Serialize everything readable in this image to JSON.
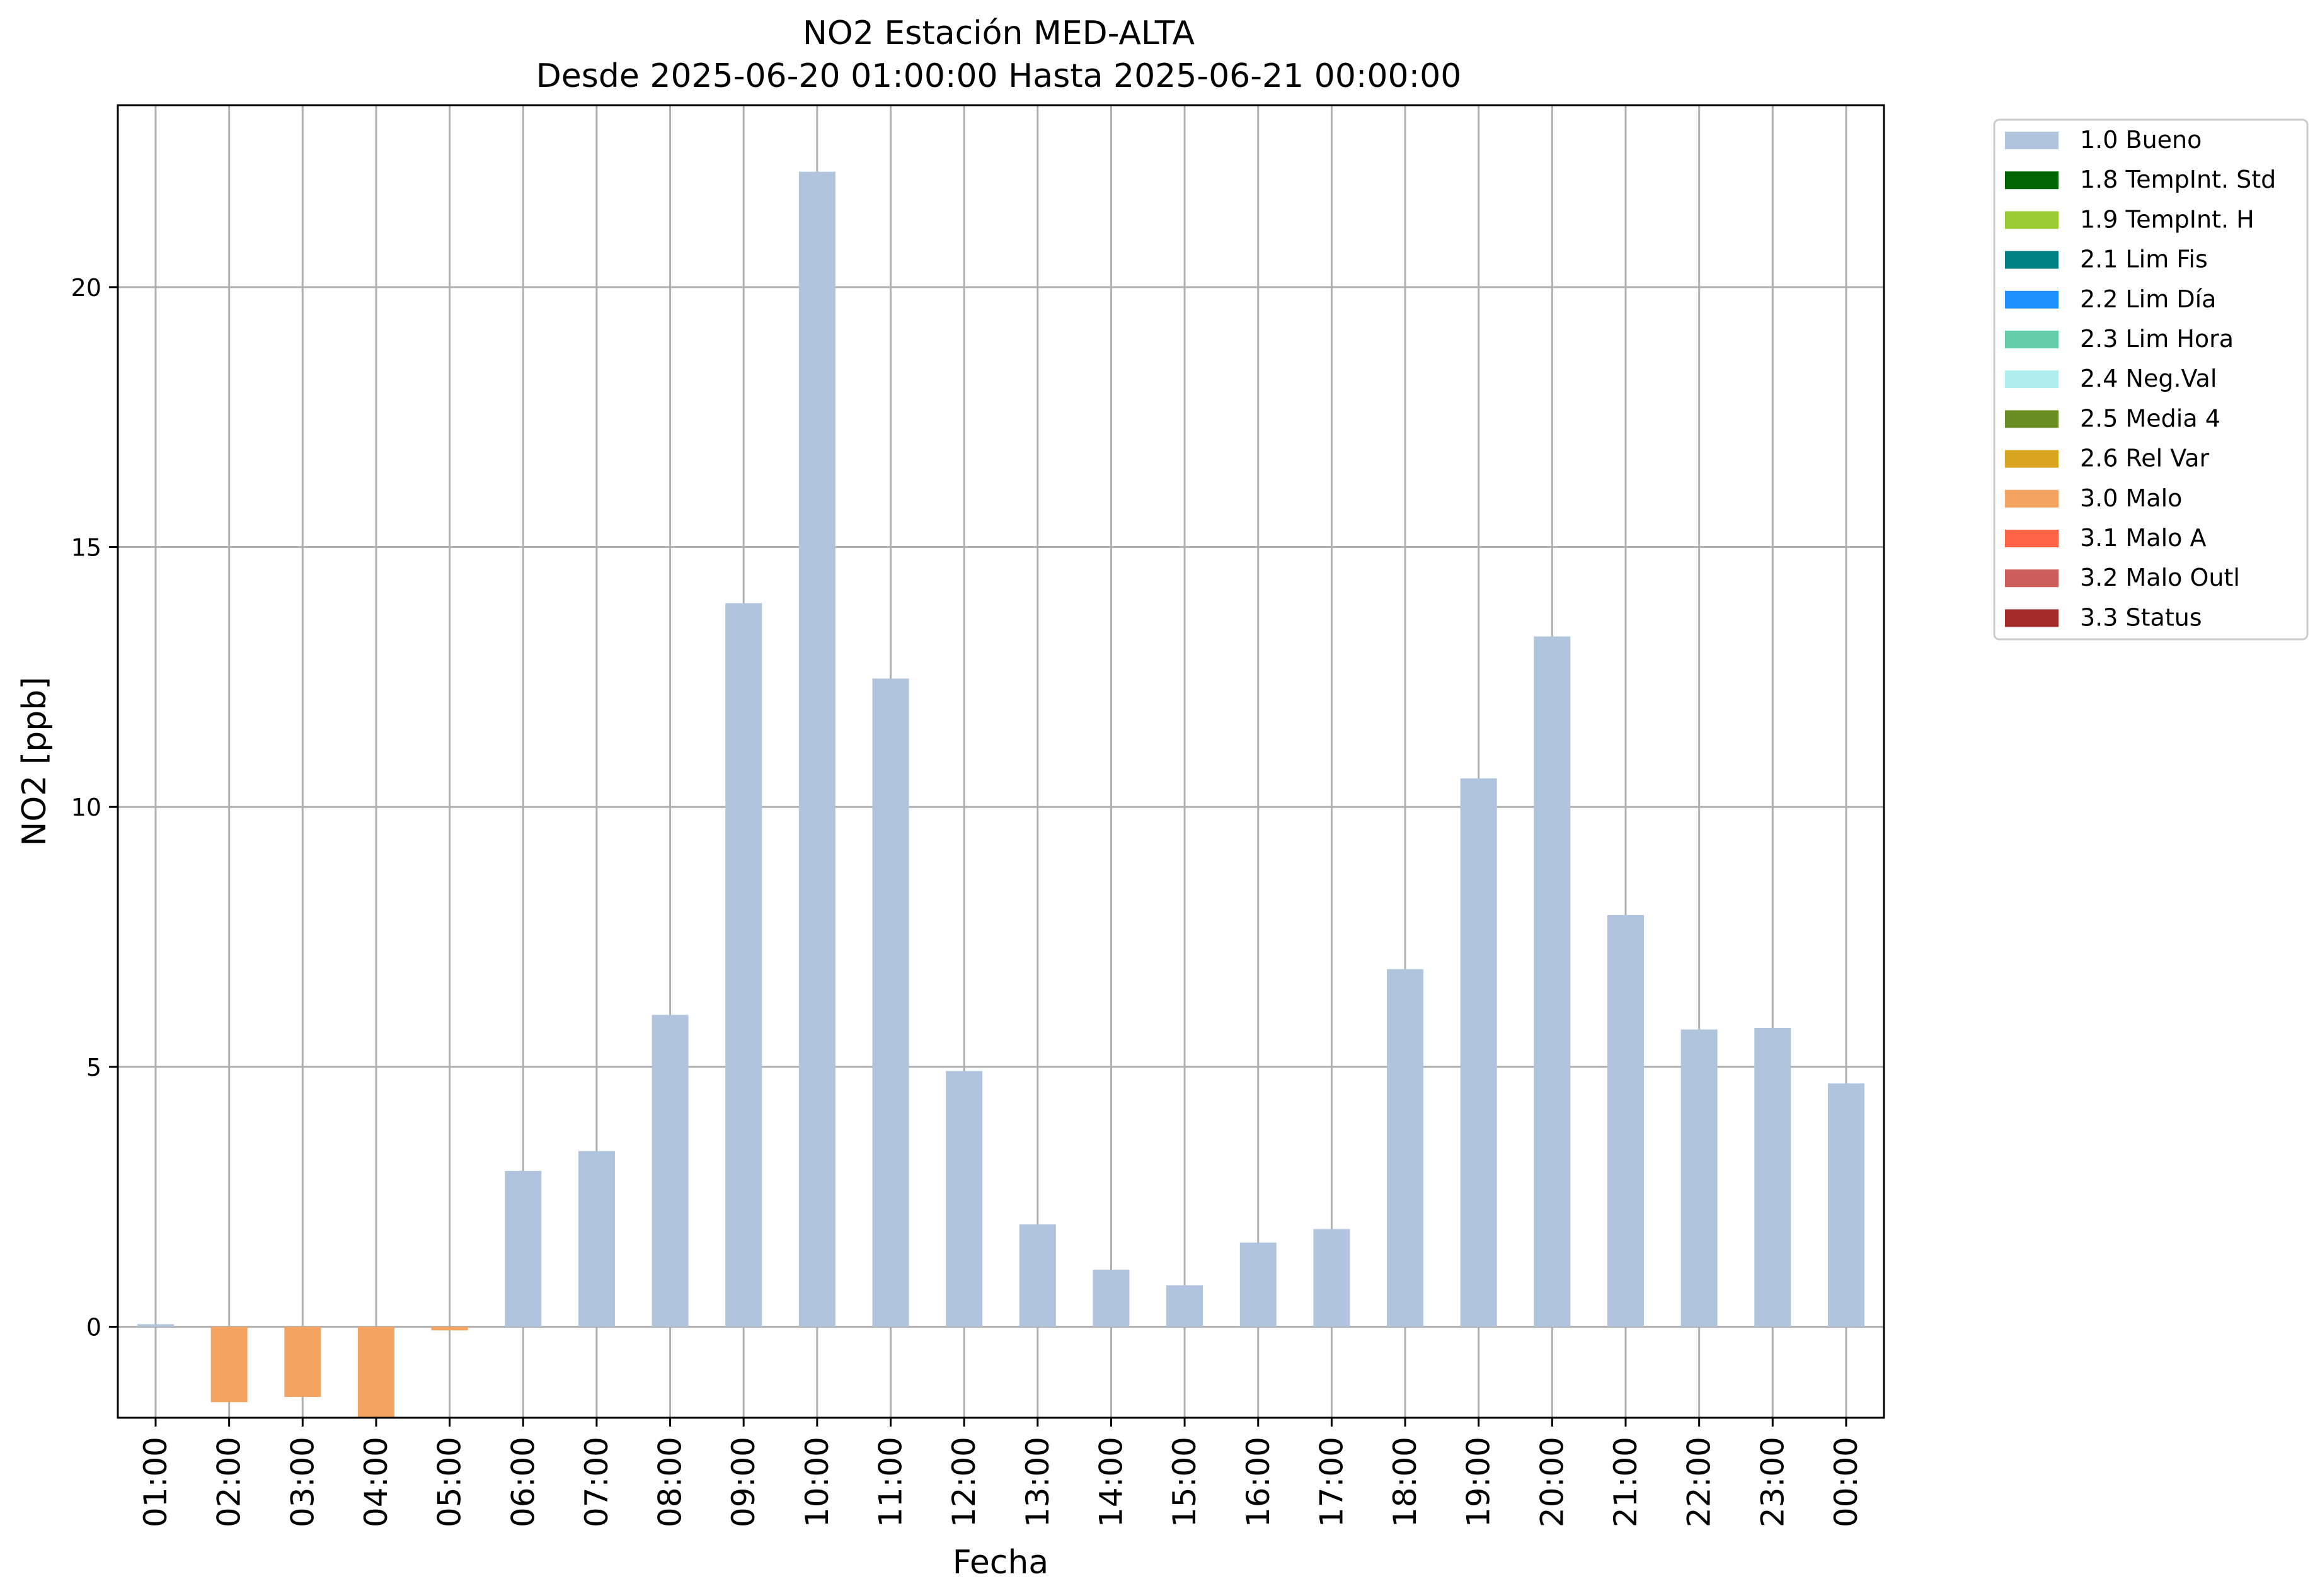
{
  "chart_data": {
    "type": "bar",
    "title": "NO2 Estación MED-ALTA",
    "subtitle": "Desde 2025-06-20 01:00:00 Hasta 2025-06-21 00:00:00",
    "xlabel": "Fecha",
    "ylabel": "NO2 [ppb]",
    "ylim": [
      -1.75,
      23.5
    ],
    "yticks": [
      0,
      5,
      10,
      15,
      20
    ],
    "grid": true,
    "legend_position": "outside-right",
    "categories": [
      "01:00",
      "02:00",
      "03:00",
      "04:00",
      "05:00",
      "06:00",
      "07:00",
      "08:00",
      "09:00",
      "10:00",
      "11:00",
      "12:00",
      "13:00",
      "14:00",
      "15:00",
      "16:00",
      "17:00",
      "18:00",
      "19:00",
      "20:00",
      "21:00",
      "22:00",
      "23:00",
      "00:00"
    ],
    "values": [
      0.05,
      -1.45,
      -1.35,
      -1.75,
      -0.07,
      3.0,
      3.38,
      6.0,
      13.92,
      22.22,
      12.47,
      4.92,
      1.97,
      1.1,
      0.8,
      1.62,
      1.88,
      6.88,
      10.55,
      13.28,
      7.92,
      5.72,
      5.75,
      4.68
    ],
    "flags": [
      "1.0 Bueno",
      "3.0 Malo",
      "3.0 Malo",
      "3.0 Malo",
      "3.0 Malo",
      "1.0 Bueno",
      "1.0 Bueno",
      "1.0 Bueno",
      "1.0 Bueno",
      "1.0 Bueno",
      "1.0 Bueno",
      "1.0 Bueno",
      "1.0 Bueno",
      "1.0 Bueno",
      "1.0 Bueno",
      "1.0 Bueno",
      "1.0 Bueno",
      "1.0 Bueno",
      "1.0 Bueno",
      "1.0 Bueno",
      "1.0 Bueno",
      "1.0 Bueno",
      "1.0 Bueno",
      "1.0 Bueno"
    ],
    "legend": [
      {
        "label": "1.0 Bueno",
        "color": "#b0c4de"
      },
      {
        "label": "1.8 TempInt. Std",
        "color": "#006400"
      },
      {
        "label": "1.9 TempInt. H",
        "color": "#9acd32"
      },
      {
        "label": "2.1 Lim Fis",
        "color": "#008080"
      },
      {
        "label": "2.2 Lim Día",
        "color": "#1e90ff"
      },
      {
        "label": "2.3 Lim Hora",
        "color": "#66cdaa"
      },
      {
        "label": "2.4 Neg.Val",
        "color": "#afeeee"
      },
      {
        "label": "2.5 Media 4",
        "color": "#6b8e23"
      },
      {
        "label": "2.6 Rel Var",
        "color": "#daa520"
      },
      {
        "label": "3.0 Malo",
        "color": "#f4a460"
      },
      {
        "label": "3.1 Malo A",
        "color": "#ff6347"
      },
      {
        "label": "3.2 Malo Outl",
        "color": "#cd5c5c"
      },
      {
        "label": "3.3 Status",
        "color": "#a52a2a"
      }
    ]
  }
}
